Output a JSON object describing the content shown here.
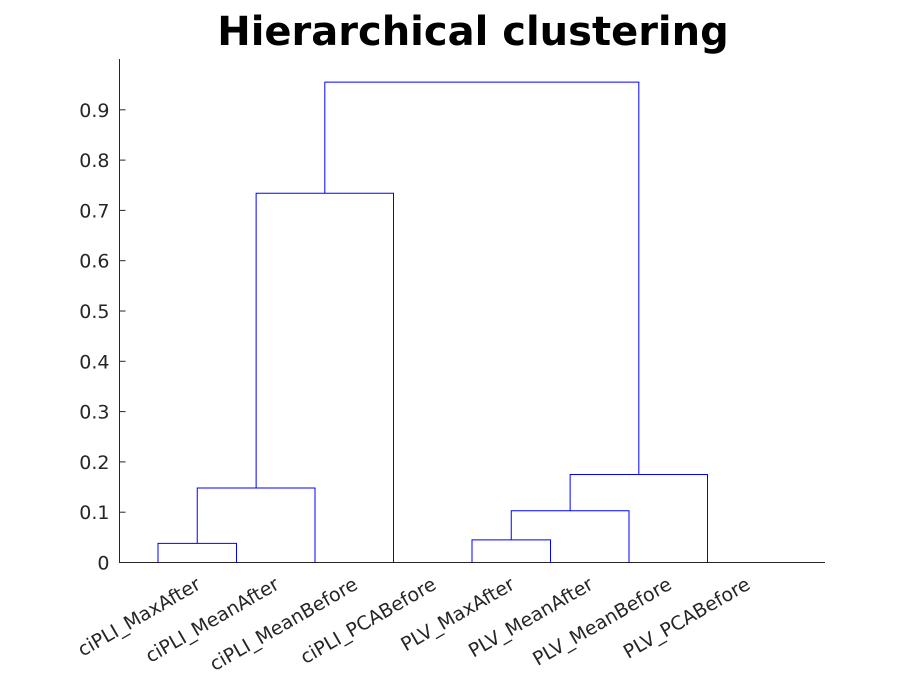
{
  "chart_data": {
    "type": "dendrogram",
    "title": "Hierarchical clustering",
    "leaves": [
      "ciPLI_MaxAfter",
      "ciPLI_MeanAfter",
      "ciPLI_MeanBefore",
      "ciPLI_PCABefore",
      "PLV_MaxAfter",
      "PLV_MeanAfter",
      "PLV_MeanBefore",
      "PLV_PCABefore"
    ],
    "links": [
      {
        "left": "ciPLI_MaxAfter",
        "right": "ciPLI_MeanAfter",
        "height": 0.038
      },
      {
        "left": "PLV_MaxAfter",
        "right": "PLV_MeanAfter",
        "height": 0.045
      },
      {
        "left": "c2",
        "right": "PLV_MeanBefore",
        "height": 0.103
      },
      {
        "left": "c1",
        "right": "ciPLI_MeanBefore",
        "height": 0.148
      },
      {
        "left": "c3",
        "right": "PLV_PCABefore",
        "height": 0.175
      },
      {
        "left": "c4",
        "right": "ciPLI_PCABefore",
        "height": 0.734
      },
      {
        "left": "c6",
        "right": "c5",
        "height": 0.955
      }
    ],
    "y_ticks": [
      0,
      0.1,
      0.2,
      0.3,
      0.4,
      0.5,
      0.6,
      0.7,
      0.8,
      0.9
    ],
    "ylim": [
      0,
      1
    ],
    "link_color": "#0000ff",
    "grid": false
  }
}
